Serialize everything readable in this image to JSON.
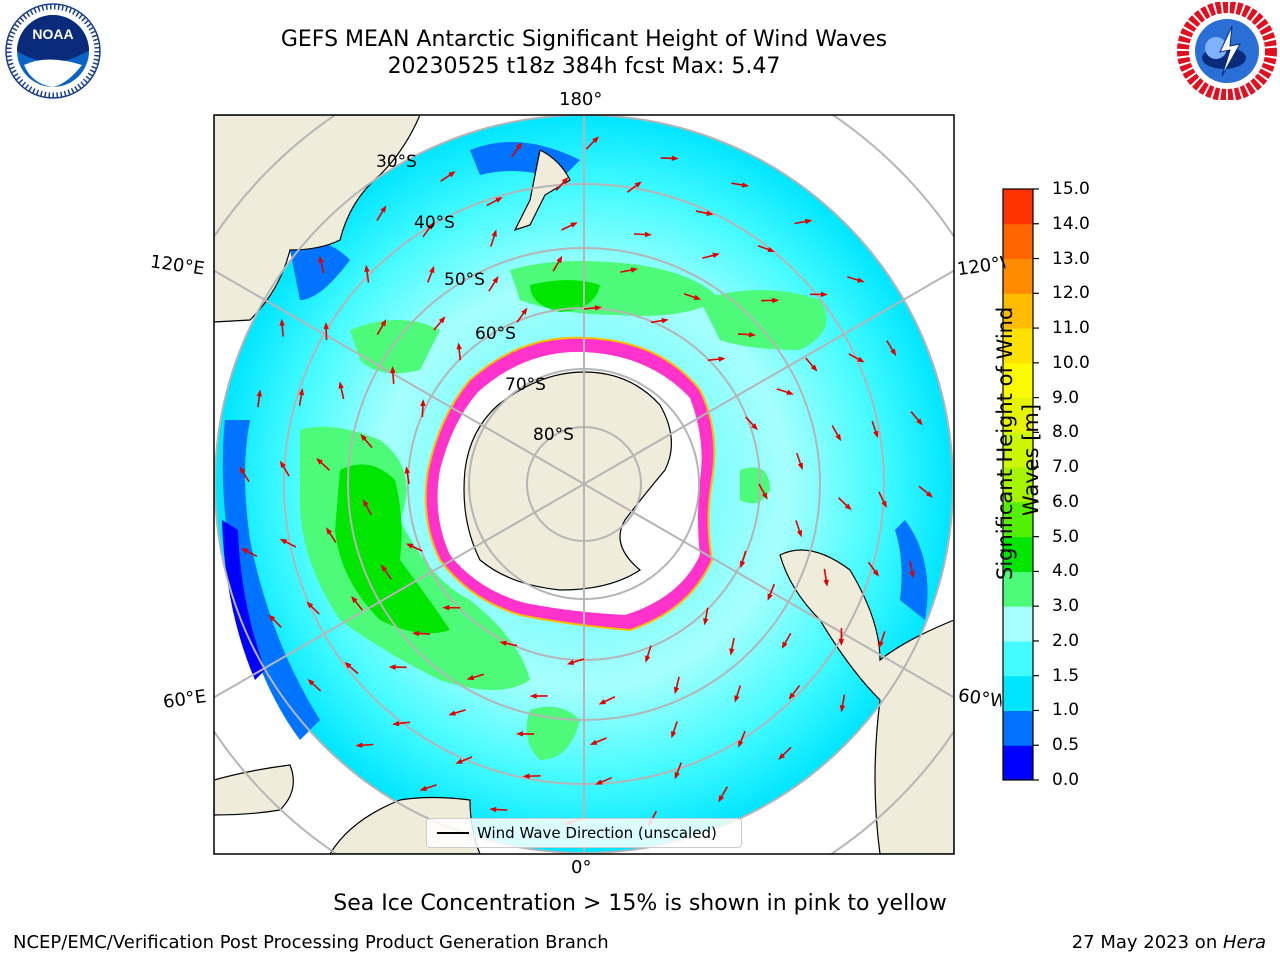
{
  "title": {
    "line1": "GEFS MEAN Antarctic Significant Height of Wind Waves",
    "line2": "20230525 t18z 384h fcst   Max: 5.47"
  },
  "logos": {
    "left": {
      "text": "NOAA",
      "icon": "noaa-logo"
    },
    "right": {
      "icon": "national-weather-service-logo",
      "ring_text": "NATIONAL WEATHER SERVICE"
    }
  },
  "map": {
    "projection": "south-polar-stereographic",
    "longitude_labels": {
      "top": "180°",
      "bottom": "0°",
      "upper_left": "120°E",
      "upper_right": "120°W",
      "lower_left": "60°E",
      "lower_right": "60°W"
    },
    "latitude_labels": [
      "30°S",
      "40°S",
      "50°S",
      "60°S",
      "70°S",
      "80°S"
    ],
    "legend_label": "Wind Wave Direction (unscaled)",
    "arrow_color": "#e00000",
    "land_color": "#efecdc",
    "ice_color": "#ff33cc"
  },
  "colorbar": {
    "title": "Significant Height of Wind Waves [m]",
    "title_line1": "Significant Height of Wind",
    "title_line2": "Waves [m]",
    "ticks": [
      "15.0",
      "14.0",
      "13.0",
      "12.0",
      "11.0",
      "10.0",
      "9.0",
      "8.0",
      "7.0",
      "6.0",
      "5.0",
      "4.0",
      "3.0",
      "2.0",
      "1.5",
      "1.0",
      "0.5",
      "0.0"
    ],
    "colors_bottom_to_top": [
      "#0000ff",
      "#0073ff",
      "#00e5ff",
      "#44fbff",
      "#a6fffc",
      "#4dfa7a",
      "#00e600",
      "#55f000",
      "#a4f400",
      "#ccf700",
      "#e6f400",
      "#fbfb00",
      "#ffe100",
      "#ffbb00",
      "#ff8c00",
      "#ff6600",
      "#ff3300",
      "#ff0000"
    ]
  },
  "notes": {
    "sea_ice": "Sea Ice Concentration > 15% is shown in pink to yellow",
    "producer": "NCEP/EMC/Verification Post Processing Product Generation Branch",
    "date_prefix": "27 May 2023 on ",
    "machine": "Hera"
  }
}
